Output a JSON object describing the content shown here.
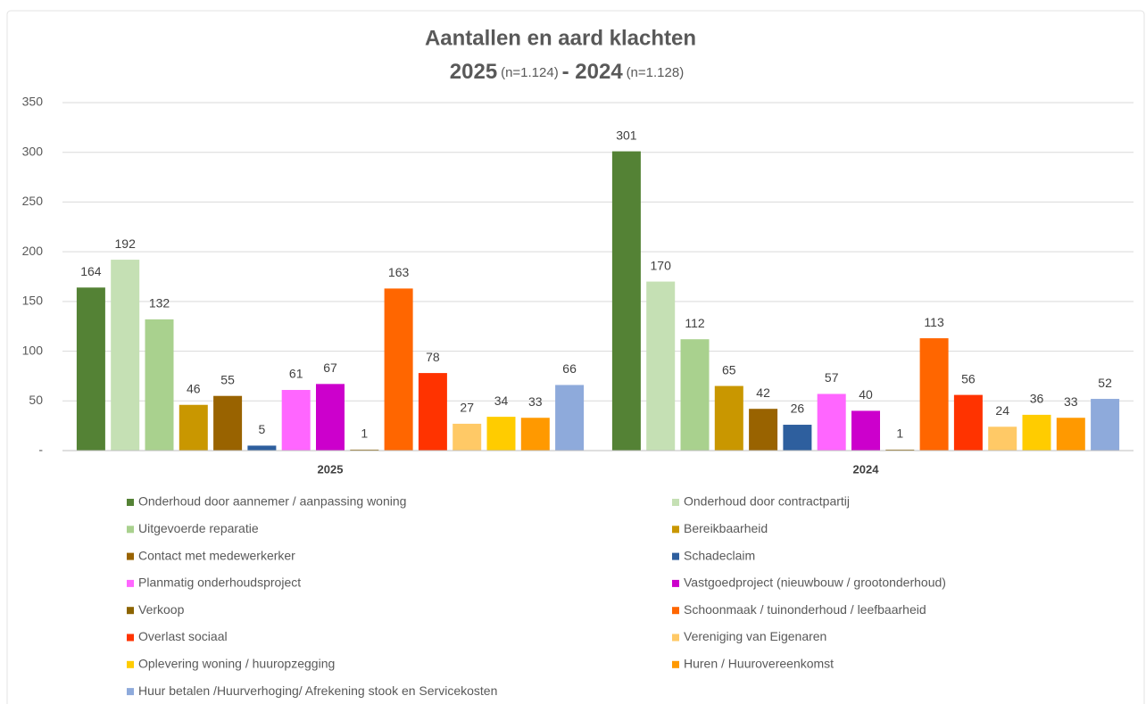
{
  "chart_data": {
    "type": "bar",
    "title": "Aantallen en aard klachten",
    "subtitle": [
      "2025",
      "(n=1.124)",
      "- 2024",
      "(n=1.128)"
    ],
    "categories": [
      "2025",
      "2024"
    ],
    "ylim": [
      0,
      350
    ],
    "yticks": [
      {
        "value": 0,
        "label": "-"
      },
      50,
      100,
      150,
      200,
      250,
      300,
      350
    ],
    "grid": true,
    "legend": "bottom",
    "series": [
      {
        "name": "Onderhoud door aannemer / aanpassing woning",
        "color": "#548235",
        "values": [
          164,
          301
        ]
      },
      {
        "name": "Onderhoud door contractpartij",
        "color": "#c5e0b4",
        "values": [
          192,
          170
        ]
      },
      {
        "name": "Uitgevoerde reparatie",
        "color": "#a9d18e",
        "values": [
          132,
          112
        ]
      },
      {
        "name": "Bereikbaarheid",
        "color": "#c99700",
        "values": [
          46,
          65
        ]
      },
      {
        "name": "Contact met medewerkerker",
        "color": "#996300",
        "values": [
          55,
          42
        ]
      },
      {
        "name": "Schadeclaim",
        "color": "#2e5f9e",
        "values": [
          5,
          26
        ]
      },
      {
        "name": "Planmatig onderhoudsproject",
        "color": "#ff66ff",
        "values": [
          61,
          57
        ]
      },
      {
        "name": "Vastgoedproject (nieuwbouw / grootonderhoud)",
        "color": "#cc00cc",
        "values": [
          67,
          40
        ]
      },
      {
        "name": "Verkoop",
        "color": "#8c6400",
        "values": [
          1,
          1
        ]
      },
      {
        "name": "Schoonmaak / tuinonderhoud / leefbaarheid",
        "color": "#ff6600",
        "values": [
          163,
          113
        ]
      },
      {
        "name": "Overlast sociaal",
        "color": "#ff3300",
        "values": [
          78,
          56
        ]
      },
      {
        "name": "Vereniging van Eigenaren",
        "color": "#ffc966",
        "values": [
          27,
          24
        ]
      },
      {
        "name": "Oplevering woning / huuropzegging",
        "color": "#ffcc00",
        "values": [
          34,
          36
        ]
      },
      {
        "name": "Huren / Huurovereenkomst",
        "color": "#ff9900",
        "values": [
          33,
          33
        ]
      },
      {
        "name": "Huur betalen /Huurverhoging/ Afrekening stook en Servicekosten",
        "color": "#8eaadb",
        "values": [
          66,
          52
        ]
      }
    ]
  }
}
